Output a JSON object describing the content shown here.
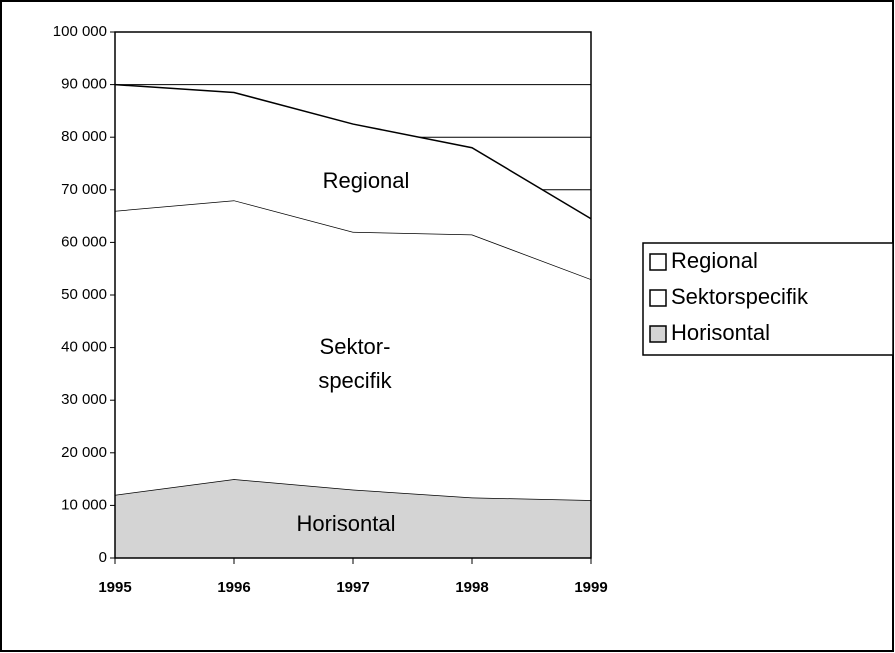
{
  "chart_data": {
    "type": "stacked_area",
    "x": [
      1995,
      1996,
      1997,
      1998,
      1999
    ],
    "xlim": [
      1995,
      1999
    ],
    "xticks": [
      1995,
      1996,
      1997,
      1998,
      1999
    ],
    "ylim": [
      0,
      100000
    ],
    "yticks": [
      0,
      {
        "value": 10000,
        "label": "10 000"
      },
      {
        "value": 20000,
        "label": "20 000"
      },
      {
        "value": 30000,
        "label": "30 000"
      },
      {
        "value": 40000,
        "label": "40 000"
      },
      {
        "value": 50000,
        "label": "50 000"
      },
      {
        "value": 60000,
        "label": "60 000"
      },
      {
        "value": 70000,
        "label": "70 000"
      },
      {
        "value": 80000,
        "label": "80 000"
      },
      {
        "value": 90000,
        "label": "90 000"
      },
      {
        "value": 100000,
        "label": "100 000"
      }
    ],
    "grid": true,
    "legend": "right",
    "series": [
      {
        "name": "Regional",
        "color": "#ffffff",
        "values": [
          24000,
          20500,
          20500,
          16500,
          11500
        ]
      },
      {
        "name": "Sektorspecifik",
        "color": "#ffffff",
        "values": [
          54000,
          53000,
          49000,
          50000,
          42000
        ]
      },
      {
        "name": "Horisontal",
        "color": "#d4d4d4",
        "values": [
          12000,
          15000,
          13000,
          11500,
          11000
        ]
      }
    ],
    "annotations": [
      "Regional",
      "Sektor-",
      "specifik",
      "Horisontal"
    ]
  }
}
